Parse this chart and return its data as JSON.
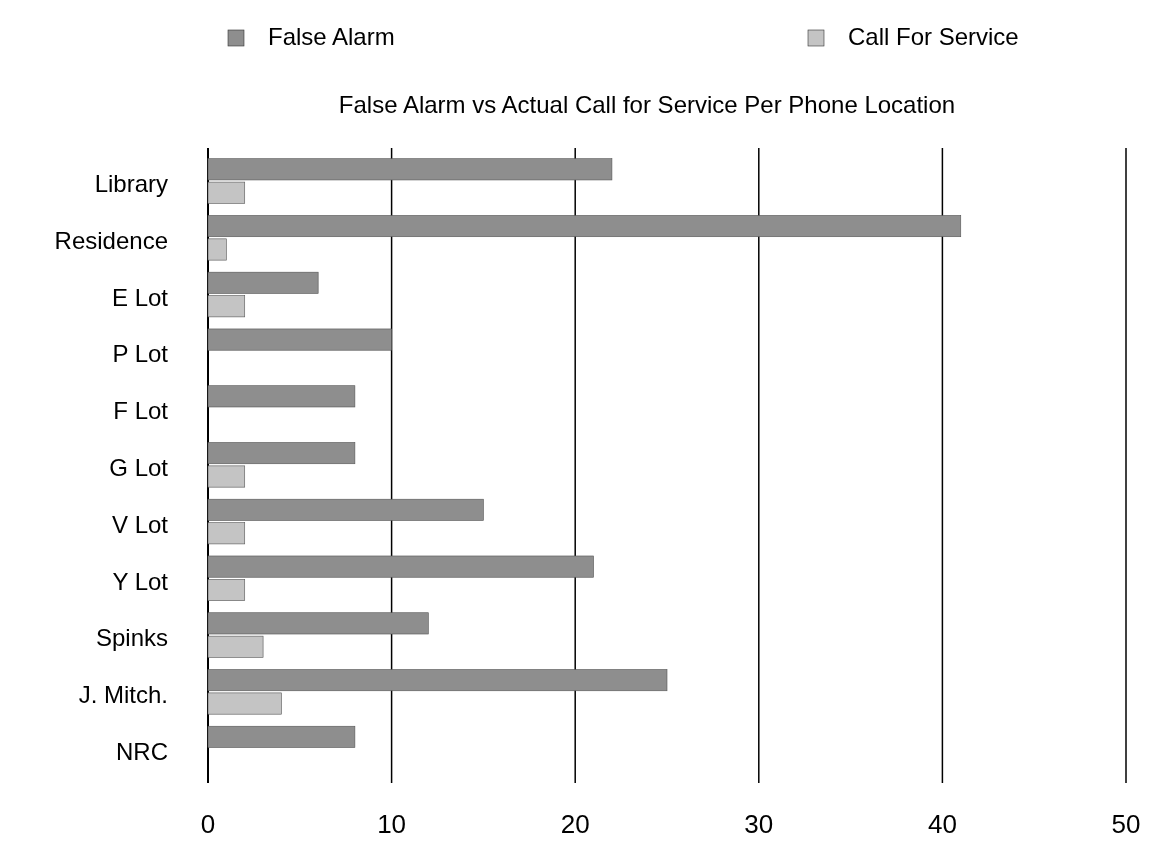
{
  "chart_data": {
    "type": "bar",
    "orientation": "horizontal",
    "title": "False Alarm vs Actual Call for Service Per Phone Location",
    "categories": [
      "Library",
      "Residence",
      "E Lot",
      "P Lot",
      "F Lot",
      "G Lot",
      "V Lot",
      "Y Lot",
      "Spinks",
      "J. Mitch.",
      "NRC"
    ],
    "series": [
      {
        "name": "False Alarm",
        "color": "#8e8e8e",
        "values": [
          22,
          41,
          6,
          10,
          8,
          8,
          15,
          21,
          12,
          25,
          8
        ]
      },
      {
        "name": "Call For Service",
        "color": "#c4c4c4",
        "values": [
          2,
          1,
          2,
          0,
          0,
          2,
          2,
          2,
          3,
          4,
          0
        ]
      }
    ],
    "xlim": [
      0,
      50
    ],
    "xticks": [
      0,
      10,
      20,
      30,
      40,
      50
    ],
    "grid": "x",
    "legend": "top"
  }
}
